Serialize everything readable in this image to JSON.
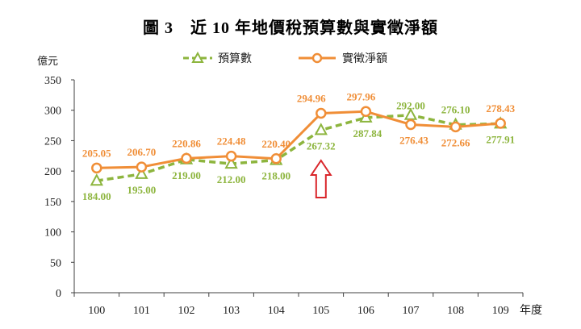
{
  "chart_data": {
    "type": "line",
    "title": "圖 3　近 10 年地價稅預算數與實徵淨額",
    "ylabel": "億元",
    "xlabel": "年度",
    "categories": [
      "100",
      "101",
      "102",
      "103",
      "104",
      "105",
      "106",
      "107",
      "108",
      "109"
    ],
    "ylim": [
      0,
      350
    ],
    "yticks": [
      0,
      50,
      100,
      150,
      200,
      250,
      300,
      350
    ],
    "grid": false,
    "legend": "top",
    "series": [
      {
        "name": "預算數",
        "values": [
          184.0,
          195.0,
          219.0,
          212.0,
          218.0,
          267.32,
          287.84,
          292.0,
          276.1,
          277.91
        ],
        "color": "#8db53e",
        "marker": "triangle",
        "dashed": true
      },
      {
        "name": "實徵淨額",
        "values": [
          205.05,
          206.7,
          220.86,
          224.48,
          220.4,
          294.96,
          297.96,
          276.43,
          272.66,
          278.43
        ],
        "color": "#f08e37",
        "marker": "circle",
        "dashed": false
      }
    ],
    "annotation": {
      "icon": "up-arrow-icon",
      "x": 105,
      "color": "#d9252a"
    }
  }
}
